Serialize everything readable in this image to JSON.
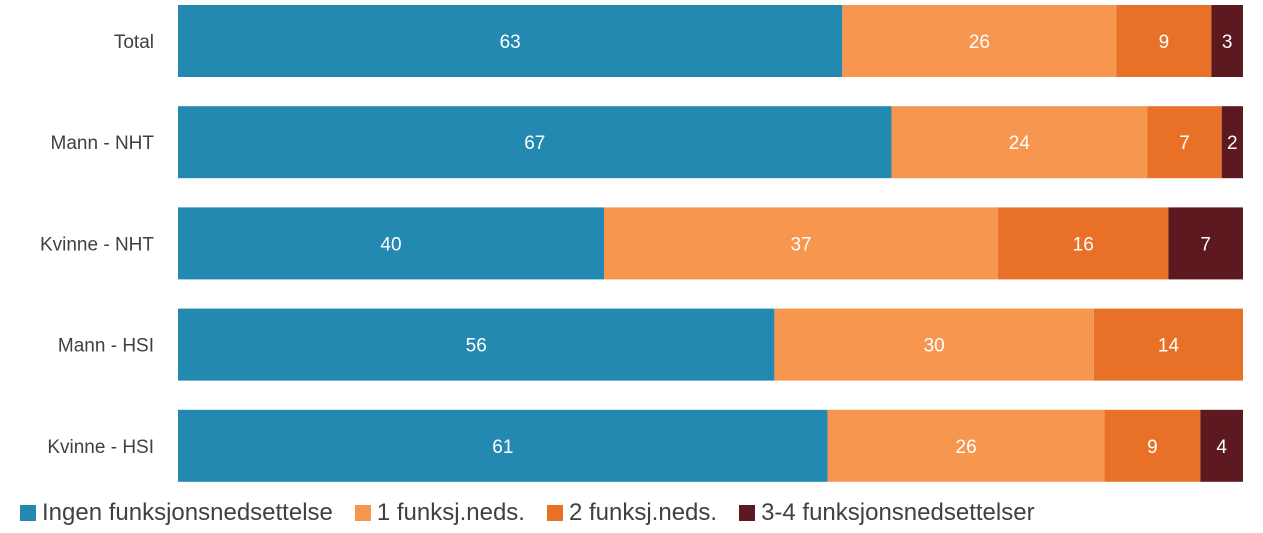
{
  "chart_data": {
    "type": "bar",
    "orientation": "horizontal",
    "stacked": true,
    "categories": [
      "Total",
      "Mann - NHT",
      "Kvinne - NHT",
      "Mann - HSI",
      "Kvinne - HSI"
    ],
    "series": [
      {
        "name": "Ingen funksjonsnedsettelse",
        "color": "#2389b0",
        "values": [
          63,
          67,
          40,
          56,
          61
        ]
      },
      {
        "name": "1 funksj.neds.",
        "color": "#f6964f",
        "values": [
          26,
          24,
          37,
          30,
          26
        ]
      },
      {
        "name": "2 funksj.neds.",
        "color": "#e97127",
        "values": [
          9,
          7,
          16,
          14,
          9
        ]
      },
      {
        "name": "3-4 funksjonsnedsettelser",
        "color": "#5c1a20",
        "values": [
          3,
          2,
          7,
          0,
          4
        ]
      }
    ],
    "data_labels": true,
    "legend": "bottom",
    "grid": false
  }
}
